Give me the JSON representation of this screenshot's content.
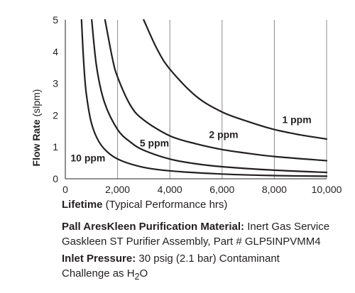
{
  "chart_data": {
    "type": "line",
    "xlabel_bold": "Lifetime",
    "xlabel_rest": " (Typical Performance hrs)",
    "ylabel_bold": "Flow Rate",
    "ylabel_rest": " (slpm)",
    "xlim": [
      0,
      10000
    ],
    "ylim": [
      0,
      5
    ],
    "xticks": [
      0,
      2000,
      4000,
      6000,
      8000,
      10000
    ],
    "xtick_labels": [
      "0",
      "2,000",
      "4,000",
      "6,000",
      "8,000",
      "10,000"
    ],
    "yticks": [
      0,
      1,
      2,
      3,
      4,
      5
    ],
    "ytick_labels": [
      "0",
      "1",
      "2",
      "3",
      "4",
      "5"
    ],
    "grid": "vertical",
    "series": [
      {
        "name": "1 ppm",
        "x": [
          3000,
          3500,
          4000,
          5000,
          6000,
          7000,
          8000,
          9000,
          10000
        ],
        "y": [
          5.0,
          4.1,
          3.45,
          2.6,
          2.1,
          1.8,
          1.55,
          1.38,
          1.25
        ]
      },
      {
        "name": "2 ppm",
        "x": [
          1520,
          1800,
          2000,
          2500,
          3000,
          4000,
          5000,
          6000,
          7000,
          8000,
          10000
        ],
        "y": [
          5.0,
          3.8,
          3.2,
          2.3,
          1.85,
          1.35,
          1.1,
          0.92,
          0.8,
          0.7,
          0.57
        ]
      },
      {
        "name": "5 ppm",
        "x": [
          1010,
          1200,
          1500,
          2000,
          2500,
          3000,
          4000,
          5000,
          6000,
          8000,
          10000
        ],
        "y": [
          5.0,
          3.5,
          2.4,
          1.55,
          1.15,
          0.9,
          0.62,
          0.47,
          0.38,
          0.27,
          0.2
        ]
      },
      {
        "name": "10 ppm",
        "x": [
          620,
          700,
          800,
          1000,
          1300,
          1700,
          2200,
          3000,
          4000,
          6000,
          8000,
          10000
        ],
        "y": [
          5.0,
          3.7,
          2.7,
          1.75,
          1.15,
          0.78,
          0.55,
          0.36,
          0.25,
          0.15,
          0.1,
          0.08
        ]
      }
    ]
  },
  "captions": {
    "line1_bold": "Pall AresKleen Purification Material:",
    "line1_rest": " Inert Gas Service",
    "line2": "Gaskleen ST Purifier Assembly, Part # GLP5INPVMM4",
    "line3_bold": "Inlet Pressure:",
    "line3_rest": " 30 psig (2.1 bar) Contaminant",
    "line4": "Challenge as H",
    "line4_sub": "2",
    "line4_end": "O"
  }
}
